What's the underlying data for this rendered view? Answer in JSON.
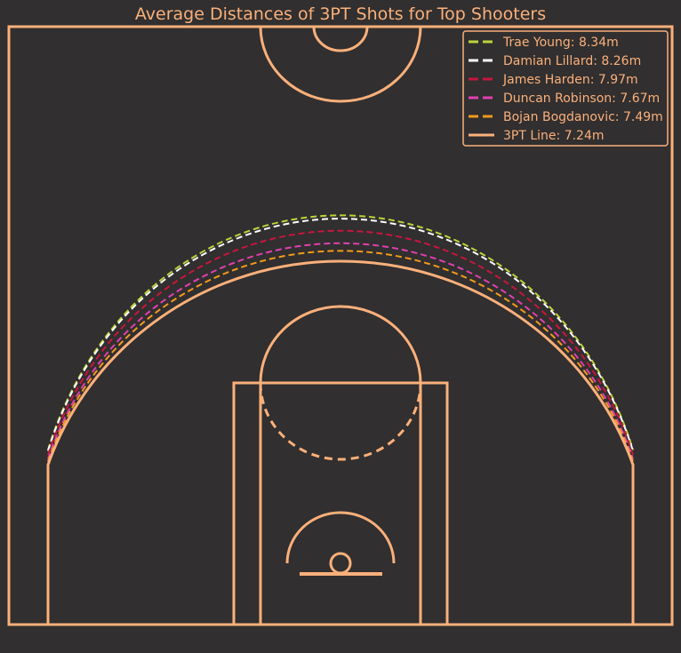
{
  "chart_data": {
    "type": "line",
    "title": "Average Distances of 3PT Shots for Top Shooters",
    "unit": "m",
    "legend_position": "top-right",
    "grid": false,
    "background_color": "#312f2f",
    "court_color": "#fbb07b",
    "series": [
      {
        "name": "Trae Young: 8.34m",
        "value": 8.34,
        "color": "#bcd33a",
        "style": "dashed"
      },
      {
        "name": "Damian Lillard: 8.26m",
        "value": 8.26,
        "color": "#ffffff",
        "style": "dashed"
      },
      {
        "name": "James Harden: 7.97m",
        "value": 7.97,
        "color": "#c8163e",
        "style": "dashed"
      },
      {
        "name": "Duncan Robinson: 7.67m",
        "value": 7.67,
        "color": "#e040b0",
        "style": "dashed"
      },
      {
        "name": "Bojan Bogdanovic: 7.49m",
        "value": 7.49,
        "color": "#f29a1c",
        "style": "dashed"
      },
      {
        "name": "3PT Line: 7.24m",
        "value": 7.24,
        "color": "#fbb07b",
        "style": "solid"
      }
    ]
  }
}
